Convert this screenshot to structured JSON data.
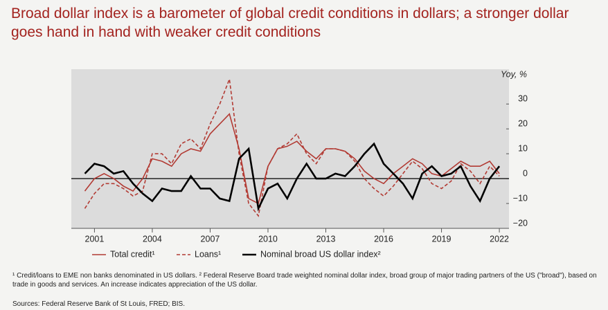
{
  "chart_data": {
    "type": "line",
    "title": "Broad dollar index is a barometer of global credit conditions in dollars; a stronger dollar goes hand in hand with weaker credit conditions",
    "y_axis_label": "Yoy, %",
    "x": [
      2000.5,
      2001,
      2001.5,
      2002,
      2002.5,
      2003,
      2003.5,
      2004,
      2004.5,
      2005,
      2005.5,
      2006,
      2006.5,
      2007,
      2007.5,
      2008,
      2008.5,
      2009,
      2009.5,
      2010,
      2010.5,
      2011,
      2011.5,
      2012,
      2012.5,
      2013,
      2013.5,
      2014,
      2014.5,
      2015,
      2015.5,
      2016,
      2016.5,
      2017,
      2017.5,
      2018,
      2018.5,
      2019,
      2019.5,
      2020,
      2020.5,
      2021,
      2021.5,
      2022
    ],
    "series": [
      {
        "name": "Total credit¹",
        "color": "#b23a33",
        "dash": false,
        "values": [
          -5,
          0,
          2,
          0,
          -3,
          -5,
          0,
          8,
          7,
          5,
          10,
          12,
          11,
          18,
          22,
          26,
          12,
          -8,
          -10,
          5,
          12,
          13,
          15,
          11,
          8,
          12,
          12,
          11,
          8,
          3,
          0,
          -2,
          2,
          5,
          8,
          6,
          2,
          1,
          4,
          7,
          5,
          5,
          7,
          2
        ]
      },
      {
        "name": "Loans¹",
        "color": "#b23a33",
        "dash": true,
        "values": [
          -12,
          -6,
          -2,
          -2,
          -4,
          -7,
          -5,
          10,
          10,
          6,
          14,
          16,
          12,
          22,
          30,
          40,
          10,
          -10,
          -15,
          5,
          12,
          14,
          18,
          10,
          6,
          12,
          12,
          11,
          7,
          0,
          -4,
          -7,
          -3,
          2,
          7,
          4,
          -2,
          -4,
          -1,
          6,
          3,
          -2,
          5,
          1
        ]
      },
      {
        "name": "Nominal broad US dollar index²",
        "color": "#000000",
        "dash": false,
        "values": [
          2,
          6,
          5,
          2,
          3,
          -2,
          -6,
          -9,
          -4,
          -5,
          -5,
          1,
          -4,
          -4,
          -8,
          -9,
          8,
          12,
          -12,
          -4,
          -2,
          -8,
          0,
          6,
          0,
          0,
          2,
          1,
          5,
          10,
          14,
          6,
          2,
          -2,
          -8,
          2,
          5,
          1,
          2,
          5,
          -3,
          -9,
          0,
          5
        ]
      }
    ],
    "xlim": [
      1999.8,
      2022.5
    ],
    "xticks": [
      2001,
      2004,
      2007,
      2010,
      2013,
      2016,
      2019,
      2022
    ],
    "ylim": [
      -20,
      44
    ],
    "yticks": [
      {
        "value": -20,
        "label": "−20"
      },
      {
        "value": -10,
        "label": "−10"
      },
      0,
      10,
      20,
      30
    ],
    "zero_line": true,
    "footnote": "¹ Credit/loans to EME non banks denominated in US dollars. ² Federal Reserve Board trade weighted nominal dollar index, broad group of major trading partners of the US (\"broad\"), based on trade in goods and services. An increase indicates appreciation of the US dollar.",
    "source": "Sources: Federal Reserve Bank of St Louis, FRED; BIS."
  }
}
